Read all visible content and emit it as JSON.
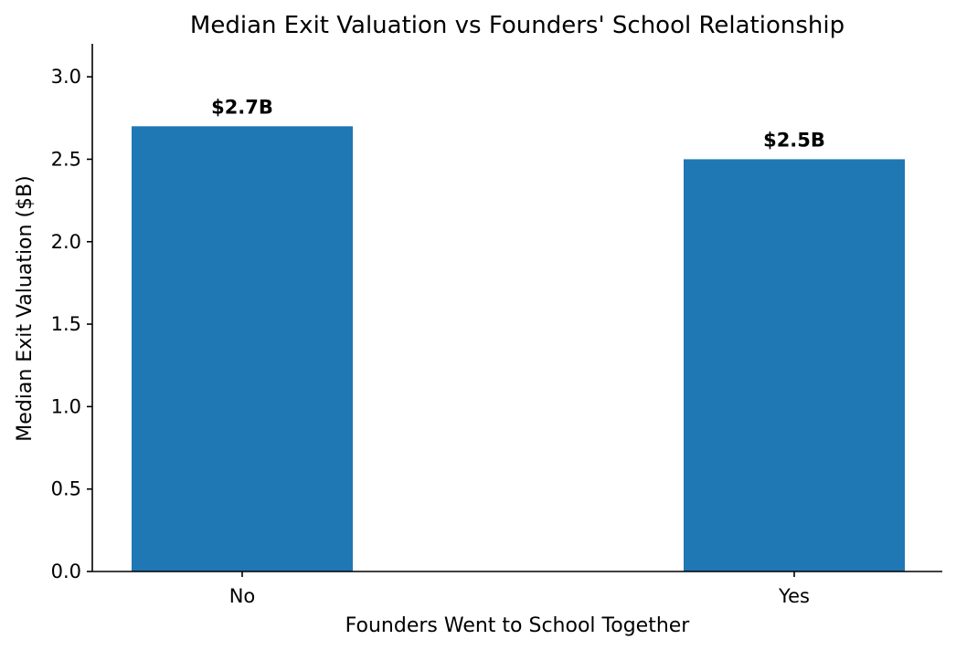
{
  "chart_data": {
    "type": "bar",
    "title": "Median Exit Valuation vs Founders' School Relationship",
    "xlabel": "Founders Went to School Together",
    "ylabel": "Median Exit Valuation ($B)",
    "categories": [
      "No",
      "Yes"
    ],
    "values": [
      2.7,
      2.5
    ],
    "data_labels": [
      "$2.7B",
      "$2.5B"
    ],
    "ylim": [
      0,
      3.2
    ],
    "yticks": [
      0.0,
      0.5,
      1.0,
      1.5,
      2.0,
      2.5,
      3.0
    ],
    "ytick_labels": [
      "0.0",
      "0.5",
      "1.0",
      "1.5",
      "2.0",
      "2.5",
      "3.0"
    ],
    "grid": false,
    "bar_color": "#1f77b4"
  }
}
